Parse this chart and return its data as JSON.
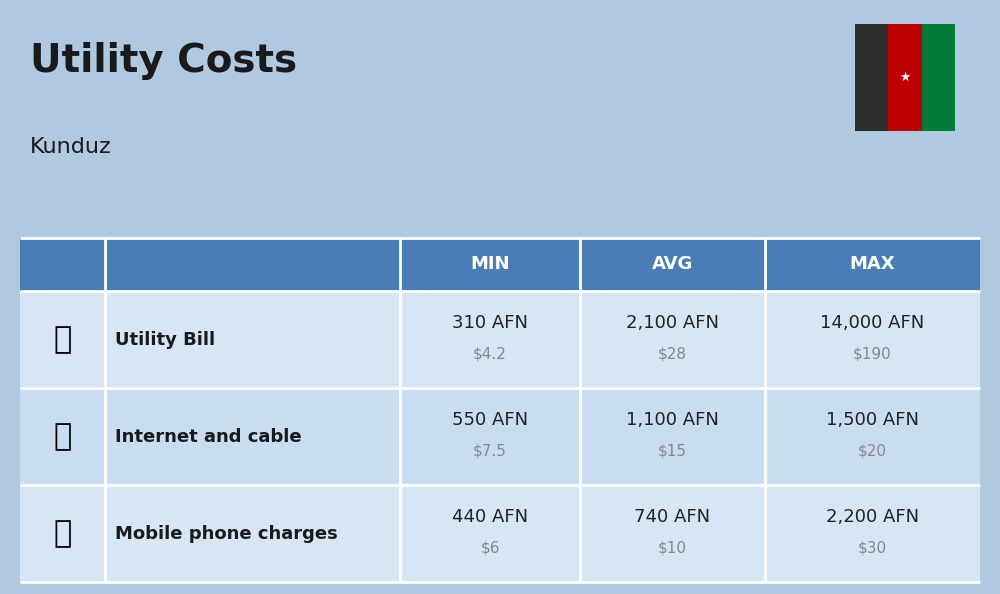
{
  "title": "Utility Costs",
  "subtitle": "Kunduz",
  "background_color": "#aec9e0",
  "header_bg_color": "#4a7db5",
  "header_text_color": "#ffffff",
  "row_bg_color_1": "#d6e6f5",
  "row_bg_color_2": "#c8ddef",
  "table_border_color": "#ffffff",
  "rows": [
    {
      "label": "Utility Bill",
      "min_afn": "310 AFN",
      "min_usd": "$4.2",
      "avg_afn": "2,100 AFN",
      "avg_usd": "$28",
      "max_afn": "14,000 AFN",
      "max_usd": "$190",
      "icon": "utility"
    },
    {
      "label": "Internet and cable",
      "min_afn": "550 AFN",
      "min_usd": "$7.5",
      "avg_afn": "1,100 AFN",
      "avg_usd": "$15",
      "max_afn": "1,500 AFN",
      "max_usd": "$20",
      "icon": "internet"
    },
    {
      "label": "Mobile phone charges",
      "min_afn": "440 AFN",
      "min_usd": "$6",
      "avg_afn": "740 AFN",
      "avg_usd": "$10",
      "max_afn": "2,200 AFN",
      "max_usd": "$30",
      "icon": "mobile"
    }
  ],
  "afn_fontsize": 13,
  "usd_fontsize": 11,
  "label_fontsize": 13,
  "header_fontsize": 13,
  "title_fontsize": 28,
  "subtitle_fontsize": 16,
  "usd_color": "#888888",
  "label_color": "#1a1a1a",
  "afn_color": "#222222",
  "flag_black": "#2d2d2d",
  "flag_red": "#bf0000",
  "flag_green": "#007a36"
}
